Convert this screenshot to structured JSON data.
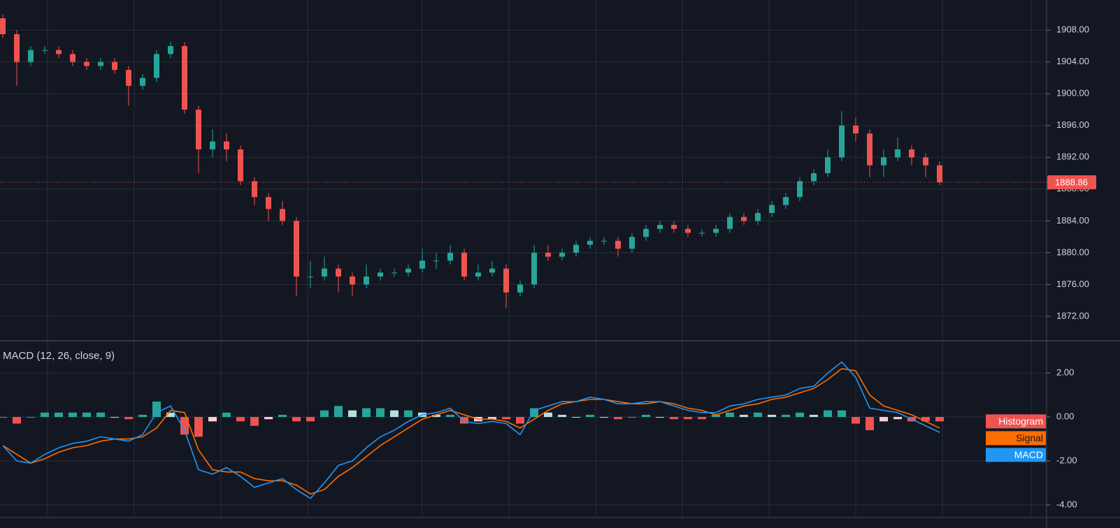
{
  "chart_data": [
    {
      "type": "candlestick",
      "open": [
        1909.5,
        1907.5,
        1904,
        1905.5,
        1905.5,
        1905,
        1904,
        1903.5,
        1904,
        1903,
        1901,
        1902,
        1905,
        1906,
        1898,
        1893,
        1894,
        1893,
        1889,
        1887,
        1885.5,
        1884,
        1877,
        1877,
        1878,
        1877,
        1876,
        1877,
        1877.5,
        1877.5,
        1878,
        1879,
        1879,
        1880,
        1877,
        1877.5,
        1878,
        1875,
        1876,
        1880,
        1879.5,
        1880,
        1881,
        1881.5,
        1881.5,
        1880.5,
        1882,
        1883,
        1883.5,
        1883,
        1882.5,
        1882.5,
        1883,
        1884.5,
        1884,
        1885,
        1886,
        1887,
        1889,
        1890,
        1892,
        1896,
        1895,
        1891,
        1892,
        1893,
        1892,
        1891
      ],
      "high": [
        1910,
        1908,
        1906,
        1906,
        1906,
        1905.5,
        1904.5,
        1904.5,
        1904.5,
        1903.5,
        1902.5,
        1905.5,
        1906.5,
        1906.5,
        1898.5,
        1895.5,
        1895,
        1893.5,
        1889.5,
        1887.5,
        1886.5,
        1884.5,
        1879,
        1879.5,
        1878.5,
        1877.5,
        1878.5,
        1878,
        1878,
        1878.5,
        1880.5,
        1880,
        1881,
        1880.5,
        1878.5,
        1879,
        1878.5,
        1876.5,
        1881,
        1881,
        1880.5,
        1881.5,
        1882,
        1882,
        1882,
        1882.5,
        1883.5,
        1884,
        1884,
        1883.5,
        1883,
        1883.5,
        1885,
        1885,
        1885.5,
        1886.5,
        1887.5,
        1889.5,
        1890.5,
        1893,
        1897.8,
        1897,
        1895.5,
        1893,
        1894.5,
        1893.5,
        1892.5,
        1891.5
      ],
      "low": [
        1907,
        1901,
        1903.5,
        1905,
        1904.5,
        1903.5,
        1903,
        1903,
        1902.5,
        1898.5,
        1900.5,
        1901.5,
        1904.5,
        1897.5,
        1890,
        1892,
        1891.5,
        1888.5,
        1886,
        1884,
        1883.5,
        1874.5,
        1875.5,
        1876.5,
        1875,
        1874.5,
        1875.5,
        1876.5,
        1877,
        1877,
        1877.5,
        1878,
        1878.5,
        1876.5,
        1876.5,
        1877,
        1873,
        1874.5,
        1875.5,
        1879,
        1879,
        1879.5,
        1880.5,
        1881,
        1879.5,
        1880,
        1881.5,
        1882.5,
        1882.5,
        1882,
        1882,
        1882,
        1882.5,
        1883.5,
        1883.5,
        1884.5,
        1885.5,
        1886.5,
        1888.5,
        1889.5,
        1891.5,
        1894,
        1889.5,
        1889.5,
        1891.5,
        1891,
        1889.5,
        1888.5
      ],
      "close": [
        1907.5,
        1904,
        1905.5,
        1905.5,
        1905,
        1904,
        1903.5,
        1904,
        1903,
        1901,
        1902,
        1905,
        1906,
        1898,
        1893,
        1894,
        1893,
        1889,
        1887,
        1885.5,
        1884,
        1877,
        1877,
        1878,
        1877,
        1876,
        1877,
        1877.5,
        1877.5,
        1878,
        1879,
        1879,
        1880,
        1877,
        1877.5,
        1878,
        1875,
        1876,
        1880,
        1879.5,
        1880,
        1881,
        1881.5,
        1881.5,
        1880.5,
        1882,
        1883,
        1883.5,
        1883,
        1882.5,
        1882.5,
        1883,
        1884.5,
        1884,
        1885,
        1886,
        1887,
        1889,
        1890,
        1892,
        1896,
        1895,
        1891,
        1892,
        1893,
        1892,
        1891,
        1888.86
      ],
      "up_color": "#26a69a",
      "down_color": "#ef5350",
      "last_price": 1888.86,
      "ylim": [
        1869.0,
        1911.8
      ],
      "yticks": [
        {
          "value": 1872,
          "label": "1872.00"
        },
        {
          "value": 1876,
          "label": "1876.00"
        },
        {
          "value": 1880,
          "label": "1880.00"
        },
        {
          "value": 1884,
          "label": "1884.00"
        },
        {
          "value": 1888,
          "label": "1888.00"
        },
        {
          "value": 1892,
          "label": "1892.00"
        },
        {
          "value": 1896,
          "label": "1896.00"
        },
        {
          "value": 1900,
          "label": "1900.00"
        },
        {
          "value": 1904,
          "label": "1904.00"
        },
        {
          "value": 1908,
          "label": "1908.00"
        }
      ],
      "grid": true
    },
    {
      "type": "macd",
      "title": "MACD (12, 26, close, 9)",
      "series": [
        {
          "name": "Histogram",
          "color": "#ef5350",
          "palette": [
            "#26a69a",
            "#b2dfdb",
            "#ffcdd2",
            "#ef5350"
          ],
          "values": [
            0,
            -0.3,
            0,
            0.2,
            0.2,
            0.2,
            0.2,
            0.2,
            0,
            -0.1,
            0.1,
            0.7,
            0.2,
            -0.8,
            -0.9,
            -0.2,
            0.2,
            -0.2,
            -0.4,
            -0.1,
            0.1,
            -0.2,
            -0.2,
            0.3,
            0.5,
            0.3,
            0.4,
            0.4,
            0.3,
            0.3,
            0.2,
            0.1,
            0.1,
            -0.3,
            -0.2,
            -0.1,
            -0.1,
            -0.3,
            0.4,
            0.2,
            0.1,
            0,
            0.1,
            0,
            -0.1,
            0,
            0.1,
            0,
            -0.1,
            -0.1,
            -0.1,
            0.1,
            0.2,
            0.1,
            0.2,
            0.1,
            0.1,
            0.2,
            0.1,
            0.3,
            0.3,
            -0.3,
            -0.6,
            -0.2,
            -0.1,
            -0.2,
            -0.2,
            -0.2
          ]
        },
        {
          "name": "Signal",
          "color": "#ff6d00",
          "values": [
            -1.3,
            -1.7,
            -2.1,
            -1.9,
            -1.6,
            -1.4,
            -1.3,
            -1.1,
            -1.0,
            -1.0,
            -0.9,
            -0.5,
            0.3,
            0.2,
            -1.5,
            -2.4,
            -2.5,
            -2.5,
            -2.8,
            -2.9,
            -2.9,
            -3.1,
            -3.5,
            -3.3,
            -2.7,
            -2.3,
            -1.8,
            -1.3,
            -0.9,
            -0.5,
            -0.1,
            0.1,
            0.3,
            0.1,
            -0.1,
            -0.1,
            -0.2,
            -0.5,
            -0.1,
            0.3,
            0.6,
            0.7,
            0.8,
            0.8,
            0.7,
            0.6,
            0.6,
            0.7,
            0.6,
            0.4,
            0.3,
            0.1,
            0.3,
            0.5,
            0.6,
            0.8,
            0.9,
            1.1,
            1.3,
            1.7,
            2.2,
            2.1,
            1.0,
            0.5,
            0.3,
            0.1,
            -0.2,
            -0.5
          ]
        },
        {
          "name": "MACD",
          "color": "#2196f3",
          "values": [
            -1.3,
            -2.0,
            -2.1,
            -1.7,
            -1.4,
            -1.2,
            -1.1,
            -0.9,
            -1.0,
            -1.1,
            -0.8,
            0.2,
            0.5,
            -0.6,
            -2.4,
            -2.6,
            -2.3,
            -2.7,
            -3.2,
            -3.0,
            -2.8,
            -3.3,
            -3.7,
            -3.0,
            -2.2,
            -2.0,
            -1.4,
            -0.9,
            -0.6,
            -0.2,
            0.1,
            0.2,
            0.4,
            -0.2,
            -0.3,
            -0.2,
            -0.3,
            -0.8,
            0.3,
            0.5,
            0.7,
            0.7,
            0.9,
            0.8,
            0.6,
            0.6,
            0.7,
            0.7,
            0.5,
            0.3,
            0.2,
            0.2,
            0.5,
            0.6,
            0.8,
            0.9,
            1.0,
            1.3,
            1.4,
            2.0,
            2.5,
            1.8,
            0.4,
            0.3,
            0.2,
            -0.1,
            -0.4,
            -0.7
          ]
        }
      ],
      "ylim": [
        -4.54,
        3.4
      ],
      "yticks": [
        {
          "value": -4,
          "label": "-4.00"
        },
        {
          "value": -2,
          "label": "-2.00"
        },
        {
          "value": 0,
          "label": "0.00"
        },
        {
          "value": 2,
          "label": "2.00"
        }
      ],
      "grid": true
    }
  ]
}
